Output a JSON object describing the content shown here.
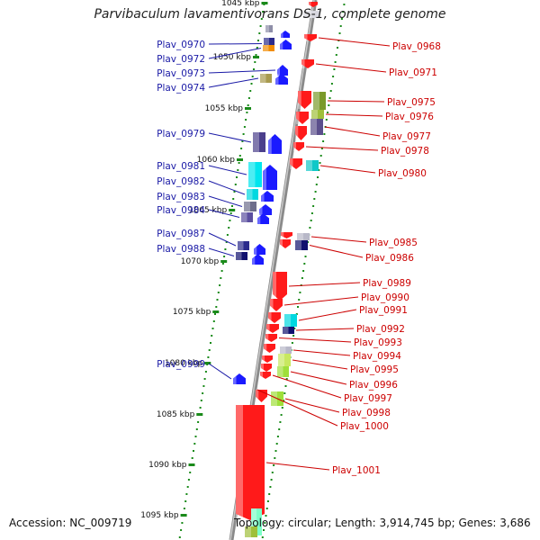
{
  "title": "Parvibaculum lavamentivorans DS-1, complete genome",
  "accession": "Accession: NC_009719",
  "summary": "Topology: circular; Length: 3,914,745 bp; Genes: 3,686",
  "colors": {
    "forward": "#1a1aff",
    "reverse": "#ff1a1a",
    "left_label": "#1a1aa6",
    "right_label": "#cc0000",
    "backbone": "#8a8a8a",
    "dots": "#1a8a1a"
  },
  "scale": [
    {
      "label": "1045 kbp",
      "kbp": 1045
    },
    {
      "label": "1050 kbp",
      "kbp": 1050
    },
    {
      "label": "1055 kbp",
      "kbp": 1055
    },
    {
      "label": "1060 kbp",
      "kbp": 1060
    },
    {
      "label": "1065 kbp",
      "kbp": 1065
    },
    {
      "label": "1070 kbp",
      "kbp": 1070
    },
    {
      "label": "1075 kbp",
      "kbp": 1075
    },
    {
      "label": "1080 kbp",
      "kbp": 1080
    },
    {
      "label": "1085 kbp",
      "kbp": 1085
    },
    {
      "label": "1090 kbp",
      "kbp": 1090
    },
    {
      "label": "1095 kbp",
      "kbp": 1095
    }
  ],
  "forward_genes": [
    "Plav_0970",
    "Plav_0972",
    "Plav_0973",
    "Plav_0974",
    "Plav_0979",
    "Plav_0981",
    "Plav_0982",
    "Plav_0983",
    "Plav_0984",
    "Plav_0987",
    "Plav_0988",
    "Plav_0999"
  ],
  "reverse_genes": [
    "Plav_0968",
    "Plav_0971",
    "Plav_0975",
    "Plav_0976",
    "Plav_0977",
    "Plav_0978",
    "Plav_0980",
    "Plav_0985",
    "Plav_0986",
    "Plav_0989",
    "Plav_0990",
    "Plav_0991",
    "Plav_0992",
    "Plav_0993",
    "Plav_0994",
    "Plav_0995",
    "Plav_0996",
    "Plav_0997",
    "Plav_0998",
    "Plav_1000",
    "Plav_1001"
  ]
}
